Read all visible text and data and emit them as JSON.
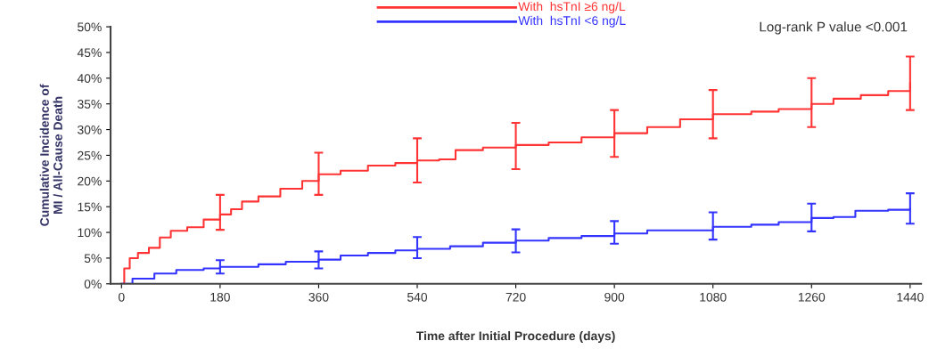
{
  "chart_data": {
    "type": "step",
    "xlabel": "Time after Initial Procedure (days)",
    "ylabel": "Cumulative Incidence of\nMI / All-Cause Death",
    "xlim": [
      -20,
      1460
    ],
    "xticks": [
      0,
      180,
      360,
      540,
      720,
      900,
      1080,
      1260,
      1440
    ],
    "ylim": [
      0,
      50
    ],
    "yticks": [
      {
        "value": 0,
        "label": "0%"
      },
      {
        "value": 5,
        "label": "5%"
      },
      {
        "value": 10,
        "label": "10%"
      },
      {
        "value": 15,
        "label": "15%"
      },
      {
        "value": 20,
        "label": "20%"
      },
      {
        "value": 25,
        "label": "25%"
      },
      {
        "value": 30,
        "label": "30%"
      },
      {
        "value": 35,
        "label": "35%"
      },
      {
        "value": 40,
        "label": "40%"
      },
      {
        "value": 45,
        "label": "45%"
      },
      {
        "value": 50,
        "label": "50%"
      }
    ],
    "grid": false,
    "legend": "top",
    "annotations": [
      "Log-rank P value <0.001"
    ],
    "series": [
      {
        "name": "With  hsTnI ≥6 ng/L",
        "color": "#ff3333",
        "x": [
          0,
          5,
          15,
          30,
          50,
          70,
          90,
          120,
          150,
          180,
          200,
          220,
          250,
          290,
          330,
          360,
          400,
          450,
          500,
          540,
          580,
          610,
          660,
          720,
          780,
          840,
          900,
          960,
          1020,
          1080,
          1150,
          1200,
          1260,
          1300,
          1350,
          1400,
          1440
        ],
        "values": [
          0,
          3,
          5,
          6,
          7,
          9,
          10.3,
          11,
          12.5,
          13.5,
          14.5,
          16,
          17,
          18.5,
          20,
          21.3,
          22,
          23,
          23.5,
          24,
          24.2,
          26,
          26.5,
          27,
          27.5,
          28.5,
          29.3,
          30.5,
          32,
          33,
          33.5,
          34,
          35,
          36,
          36.7,
          37.5,
          39
        ],
        "errors": [
          null,
          null,
          null,
          null,
          null,
          null,
          null,
          null,
          null,
          [
            10.5,
            17.3
          ],
          null,
          null,
          null,
          null,
          null,
          [
            17.3,
            25.5
          ],
          null,
          null,
          null,
          [
            19.7,
            28.3
          ],
          null,
          null,
          null,
          [
            22.3,
            31.3
          ],
          null,
          null,
          [
            24.7,
            33.8
          ],
          null,
          null,
          [
            28.3,
            37.7
          ],
          null,
          null,
          [
            30.5,
            40
          ],
          null,
          null,
          null,
          [
            33.8,
            44.2
          ]
        ]
      },
      {
        "name": "With  hsTnI <6 ng/L",
        "color": "#3333ff",
        "x": [
          0,
          20,
          60,
          100,
          150,
          180,
          250,
          300,
          360,
          400,
          450,
          500,
          540,
          600,
          660,
          720,
          780,
          840,
          900,
          960,
          1080,
          1150,
          1200,
          1260,
          1300,
          1340,
          1400,
          1440
        ],
        "values": [
          0,
          1,
          2,
          2.7,
          3,
          3.3,
          3.8,
          4.3,
          4.7,
          5.5,
          6,
          6.5,
          6.8,
          7.3,
          8,
          8.4,
          8.9,
          9.3,
          9.8,
          10.4,
          11.1,
          11.5,
          12,
          12.8,
          13,
          14.2,
          14.4,
          14.6
        ],
        "errors": [
          null,
          null,
          null,
          null,
          null,
          [
            2,
            4.6
          ],
          null,
          null,
          [
            3,
            6.3
          ],
          null,
          null,
          null,
          [
            5,
            9.1
          ],
          null,
          null,
          [
            6.1,
            10.6
          ],
          null,
          null,
          [
            7.8,
            12.2
          ],
          null,
          [
            8.6,
            13.9
          ],
          null,
          null,
          [
            10.2,
            15.6
          ],
          null,
          null,
          null,
          [
            11.7,
            17.6
          ]
        ]
      }
    ]
  }
}
